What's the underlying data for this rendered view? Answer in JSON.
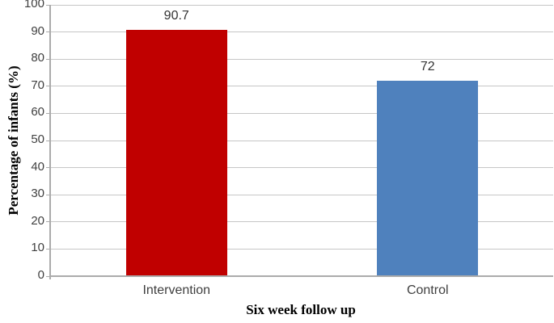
{
  "chart_data": {
    "type": "bar",
    "categories": [
      "Intervention",
      "Control"
    ],
    "values": [
      90.7,
      72
    ],
    "value_labels": [
      "90.7",
      "72"
    ],
    "bar_colors": [
      "#c00000",
      "#4f81bd"
    ],
    "title": "",
    "xlabel": "Six week follow up",
    "ylabel": "Percentage of infants (%)",
    "ylim": [
      0,
      100
    ],
    "yticks": [
      0,
      10,
      20,
      30,
      40,
      50,
      60,
      70,
      80,
      90,
      100
    ],
    "grid": "horizontal",
    "legend_position": "none",
    "colors": {
      "gridline": "#c6c6c6",
      "axis": "#ababab",
      "tick_text": "#3f3f3f",
      "value_text": "#333333",
      "title_text": "#000000",
      "background": "#ffffff"
    }
  }
}
